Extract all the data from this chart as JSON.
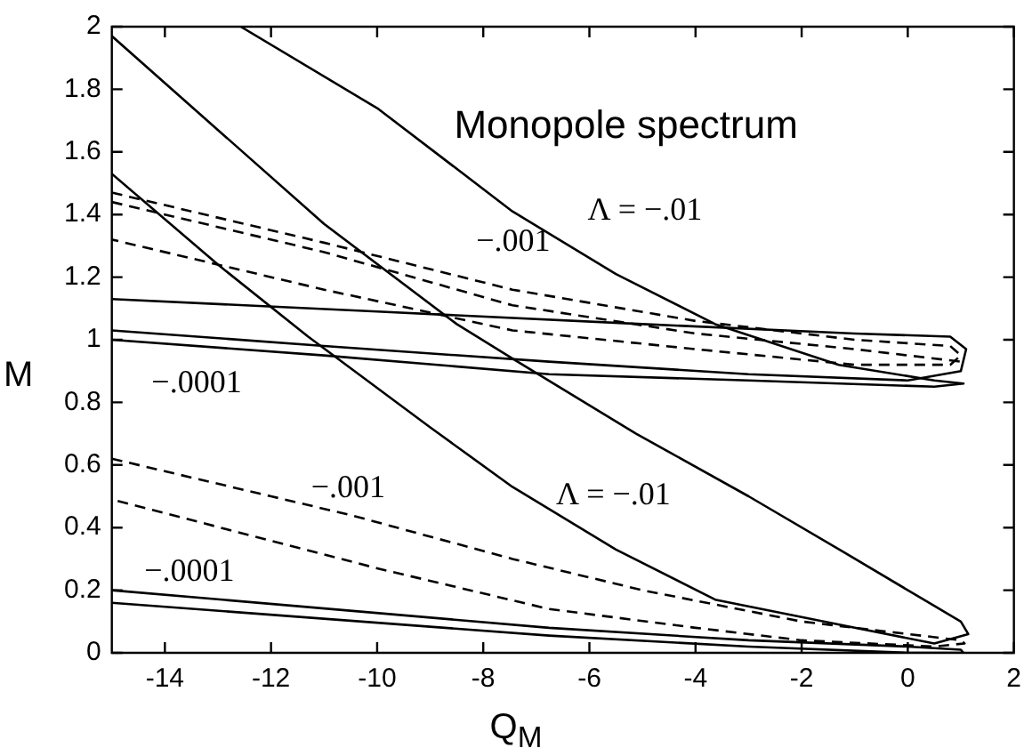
{
  "chart_data": {
    "type": "line",
    "title": "Monopole spectrum",
    "xlabel": "Q$_{M}$",
    "ylabel": "M",
    "xlim": [
      -15,
      2
    ],
    "xticks": [
      -14,
      -12,
      -10,
      -8,
      -6,
      -4,
      -2,
      0,
      2
    ],
    "ylim": [
      0,
      2
    ],
    "yticks": [
      0,
      0.2,
      0.4,
      0.6,
      0.8,
      1,
      1.2,
      1.4,
      1.6,
      1.8,
      2
    ],
    "marker": "none",
    "legend": false,
    "series": [
      {
        "color": "#000000",
        "line_style": "solid",
        "x": [
          -12.57,
          -10,
          -7.45,
          -5.5,
          -3.63,
          -1.3,
          0.5,
          1.05,
          0.5,
          -3,
          -6.76,
          -11,
          -15
        ],
        "values": [
          2,
          1.74,
          1.41,
          1.21,
          1.05,
          0.92,
          0.87,
          0.86,
          0.85,
          0.87,
          0.89,
          0.95,
          1
        ]
      },
      {
        "color": "#000000",
        "line_style": "solid",
        "x": [
          -15,
          -13,
          -11,
          -8.5,
          -7.45,
          -5.12,
          -3,
          -1.19,
          0.3,
          1,
          1.14,
          0.5,
          -1,
          -3.63,
          -5.5,
          -7.45,
          -9,
          -11.3,
          -13,
          -15
        ],
        "values": [
          1.97,
          1.67,
          1.37,
          1.05,
          0.94,
          0.7,
          0.5,
          0.32,
          0.17,
          0.1,
          0.06,
          0.03,
          0.08,
          0.17,
          0.33,
          0.53,
          0.72,
          1.01,
          1.24,
          1.53
        ]
      },
      {
        "color": "#000000",
        "line_style": "solid",
        "x": [
          -15,
          -10,
          -5,
          -1,
          0.8,
          1.1,
          1,
          0,
          -3,
          -6.76,
          -11,
          -15
        ],
        "values": [
          1.13,
          1.09,
          1.05,
          1.02,
          1.01,
          0.97,
          0.9,
          0.87,
          0.89,
          0.93,
          0.98,
          1.03
        ]
      },
      {
        "color": "#000000",
        "line_style": "dashed",
        "x": [
          -15,
          -11,
          -7.45,
          -4,
          -1,
          0.8,
          1,
          0.8,
          -1,
          -4,
          -7.45,
          -11,
          -15
        ],
        "values": [
          1.47,
          1.31,
          1.16,
          1.06,
          1,
          0.98,
          0.95,
          0.92,
          0.92,
          0.97,
          1.03,
          1.16,
          1.32
        ]
      },
      {
        "color": "#000000",
        "line_style": "dashed",
        "x": [
          -15,
          -11,
          -7.45,
          -4,
          -1,
          1
        ],
        "values": [
          1.44,
          1.28,
          1.11,
          1.02,
          0.97,
          0.93
        ]
      },
      {
        "color": "#000000",
        "line_style": "dashed",
        "x": [
          -15,
          -12,
          -10.5,
          -7.45,
          -5,
          -2,
          0,
          1,
          1.07,
          0.5,
          -2,
          -4,
          -6.76,
          -10,
          -15
        ],
        "values": [
          0.62,
          0.5,
          0.44,
          0.3,
          0.2,
          0.1,
          0.06,
          0.04,
          0.03,
          0.02,
          0.04,
          0.08,
          0.14,
          0.27,
          0.49
        ]
      },
      {
        "color": "#000000",
        "line_style": "solid",
        "x": [
          -15,
          -6.76,
          -3,
          0,
          1,
          1.05,
          0,
          -3,
          -6.76,
          -15
        ],
        "values": [
          0.2,
          0.08,
          0.04,
          0.02,
          0.01,
          0,
          0,
          0.02,
          0.055,
          0.16
        ]
      }
    ],
    "annotations": [
      "Λ = −.01",
      "−.001",
      "−.0001",
      "−.001",
      "Λ = −.01",
      "−.0001"
    ]
  }
}
